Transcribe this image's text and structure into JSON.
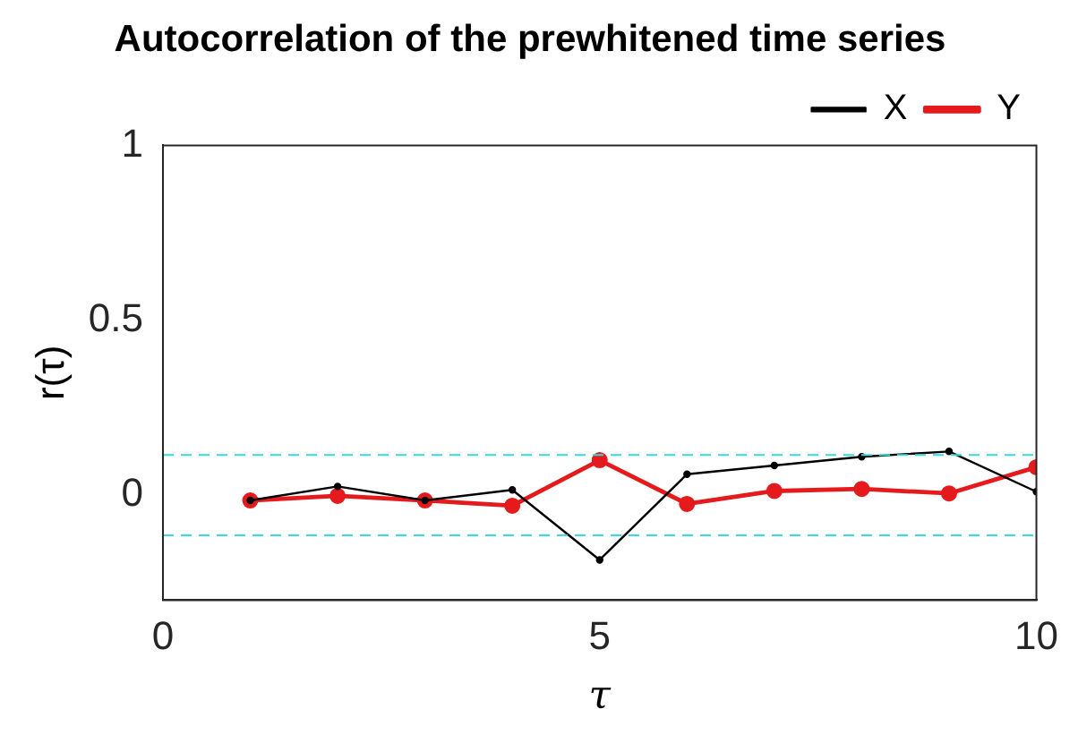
{
  "chart_data": {
    "type": "line",
    "title": "Autocorrelation of the prewhitened time series",
    "xlabel": "τ",
    "ylabel": "r(τ)",
    "x": [
      1,
      2,
      3,
      4,
      5,
      6,
      7,
      8,
      9,
      10
    ],
    "series": [
      {
        "name": "X",
        "color": "#000000",
        "values": [
          -0.015,
          0.025,
          -0.015,
          0.015,
          -0.185,
          0.06,
          0.085,
          0.11,
          0.125,
          0.01
        ]
      },
      {
        "name": "Y",
        "color": "#e41a1c",
        "values": [
          -0.015,
          -0.002,
          -0.015,
          -0.03,
          0.1,
          -0.025,
          0.012,
          0.018,
          0.005,
          0.08
        ]
      }
    ],
    "xlim": [
      0,
      10
    ],
    "xticks": [
      0,
      5,
      10
    ],
    "ylim": [
      -0.3,
      1
    ],
    "yticks": [
      0,
      0.5,
      1
    ],
    "ref_lines": [
      {
        "axis": "y",
        "value": 0.115,
        "color": "#33dddd",
        "line_style": "dashed"
      },
      {
        "axis": "y",
        "value": -0.115,
        "color": "#33dddd",
        "line_style": "dashed"
      }
    ],
    "grid": false,
    "legend": "top right",
    "marker": "circle",
    "line_style": "solid"
  }
}
